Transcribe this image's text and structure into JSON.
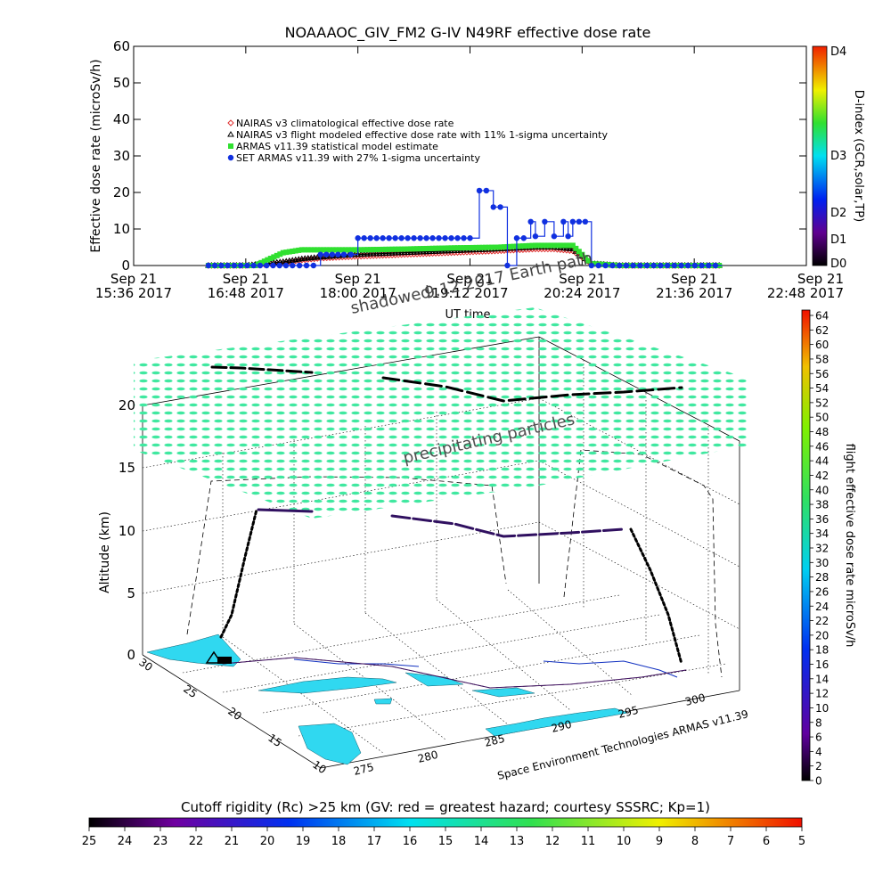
{
  "title": "NOAAAOC_GIV_FM2 G-IV    N49RF  effective dose rate",
  "chart_data": [
    {
      "type": "line",
      "title": "NOAAAOC_GIV_FM2 G-IV    N49RF  effective dose rate",
      "ylabel": "Effective dose rate (microSv/h)",
      "xlabel": "UT time",
      "ylim": [
        0,
        60
      ],
      "y_ticks": [
        "0",
        "10",
        "20",
        "30",
        "40",
        "50",
        "60"
      ],
      "x_ticks": [
        {
          "l1": "Sep 21",
          "l2": "15:36 2017"
        },
        {
          "l1": "Sep 21",
          "l2": "16:48 2017"
        },
        {
          "l1": "Sep 21",
          "l2": "18:00 2017"
        },
        {
          "l1": "Sep 21",
          "l2": "19:12 2017"
        },
        {
          "l1": "Sep 21",
          "l2": "20:24 2017"
        },
        {
          "l1": "Sep 21",
          "l2": "21:36 2017"
        },
        {
          "l1": "Sep 21",
          "l2": "22:48 2017"
        }
      ],
      "xlim_hours": [
        15.6,
        22.8
      ],
      "legend": [
        {
          "label": "NAIRAS v3 climatological effective dose rate",
          "color": "#e03030",
          "marker": "diamond"
        },
        {
          "label": "NAIRAS v3 flight modeled effective dose rate with 11% 1-sigma uncertainty",
          "color": "#000000",
          "marker": "triangle"
        },
        {
          "label": "ARMAS v11.39 statistical model estimate",
          "color": "#30e030",
          "marker": "square"
        },
        {
          "label": "SET ARMAS v11.39 with 27% 1-sigma uncertainty",
          "color": "#1030e0",
          "marker": "circle"
        }
      ],
      "series": [
        {
          "name": "NAIRAS v3 climatological effective dose rate",
          "color": "#e03030",
          "x": [
            16.4,
            16.8,
            17.0,
            17.2,
            17.4,
            17.6,
            18.0,
            18.5,
            19.0,
            19.5,
            19.9,
            20.1,
            20.3,
            20.5,
            20.8,
            21.9
          ],
          "values": [
            0,
            0,
            0.3,
            0.8,
            1.5,
            2.0,
            2.5,
            3.0,
            3.5,
            4.0,
            4.5,
            4.5,
            4.0,
            0.5,
            0,
            0
          ]
        },
        {
          "name": "NAIRAS v3 flight modeled effective dose rate with 11% 1-sigma uncertainty",
          "color": "#000000",
          "x": [
            16.4,
            16.8,
            17.0,
            17.2,
            17.4,
            17.6,
            18.0,
            18.5,
            19.0,
            19.5,
            19.9,
            20.1,
            20.3,
            20.5,
            20.8,
            21.9
          ],
          "values": [
            0,
            0,
            0.5,
            1.0,
            1.8,
            2.3,
            3.0,
            3.5,
            4.0,
            4.5,
            5.0,
            5.0,
            4.5,
            0.5,
            0,
            0
          ]
        },
        {
          "name": "ARMAS v11.39 statistical model estimate",
          "color": "#30e030",
          "x": [
            16.4,
            16.9,
            17.2,
            17.4,
            18.0,
            18.5,
            19.0,
            19.5,
            19.9,
            20.1,
            20.3,
            20.5,
            20.8,
            21.9
          ],
          "values": [
            0,
            0,
            3.5,
            4.3,
            4.3,
            4.5,
            4.8,
            5.0,
            5.5,
            5.5,
            5.5,
            0.5,
            0,
            0
          ]
        },
        {
          "name": "SET ARMAS v11.39 with 27% 1-sigma uncertainty",
          "color": "#1030e0",
          "x": [
            16.4,
            17.3,
            17.6,
            17.85,
            18.0,
            18.2,
            18.4,
            18.6,
            18.8,
            19.0,
            19.2,
            19.3,
            19.45,
            19.6,
            19.7,
            19.85,
            19.9,
            20.0,
            20.1,
            20.2,
            20.25,
            20.3,
            20.5,
            20.8,
            21.9
          ],
          "values": [
            0,
            0,
            3.0,
            3.0,
            7.5,
            7.5,
            7.5,
            7.5,
            7.5,
            7.5,
            7.5,
            20.5,
            16.0,
            0,
            7.5,
            12.0,
            8.0,
            12.0,
            8.0,
            12.0,
            8.0,
            12.0,
            0,
            0,
            0
          ]
        }
      ],
      "dindex_colorbar": {
        "label": "D-index (GCR,solar,TP)",
        "ticks": [
          "D4",
          "D3",
          "D2",
          "D1",
          "D0"
        ]
      }
    },
    {
      "type": "scatter",
      "title": "",
      "zlabel": "Altitude (km)",
      "z_ticks": [
        "0",
        "5",
        "10",
        "15",
        "20"
      ],
      "lon_ticks": [
        "275",
        "280",
        "285",
        "290",
        "295",
        "300"
      ],
      "lat_ticks": [
        "10",
        "15",
        "20",
        "25",
        "30"
      ],
      "annotations": {
        "shadowed": "shadowed",
        "earth_path": "9.12 2017 Earth path",
        "ut_time": "UT time",
        "precipitating": "precipitating particles",
        "credit": "Space Environment Technologies ARMAS v11.39"
      },
      "flight_track": {
        "lon": [
          275,
          276,
          278,
          282,
          286,
          290,
          293,
          296,
          298,
          299,
          299.5
        ],
        "lat": [
          27,
          27.5,
          28,
          27.5,
          26.5,
          25,
          24,
          24.5,
          25,
          24,
          22
        ],
        "alt": [
          0,
          3,
          11.5,
          11.5,
          11,
          10,
          9.5,
          9.8,
          10,
          5,
          0
        ]
      },
      "dose_colorbar": {
        "label": "flight effective dose rate microSv/h",
        "min": 0,
        "max": 64,
        "step": 2
      }
    }
  ],
  "rigidity_colorbar": {
    "label": "Cutoff rigidity (Rc) >25 km (GV: red = greatest hazard; courtesy SSSRC; Kp=1)",
    "ticks": [
      "25",
      "24",
      "23",
      "22",
      "21",
      "20",
      "19",
      "18",
      "17",
      "16",
      "15",
      "14",
      "13",
      "12",
      "11",
      "10",
      "9",
      "8",
      "7",
      "6",
      "5"
    ]
  },
  "colors": {
    "nairas_clim": "#e03030",
    "nairas_flight": "#000000",
    "armas_model": "#30e030",
    "set_armas": "#1030e0",
    "precip": "#40e8a0",
    "land": "#30d8f0",
    "track": "#200040"
  }
}
